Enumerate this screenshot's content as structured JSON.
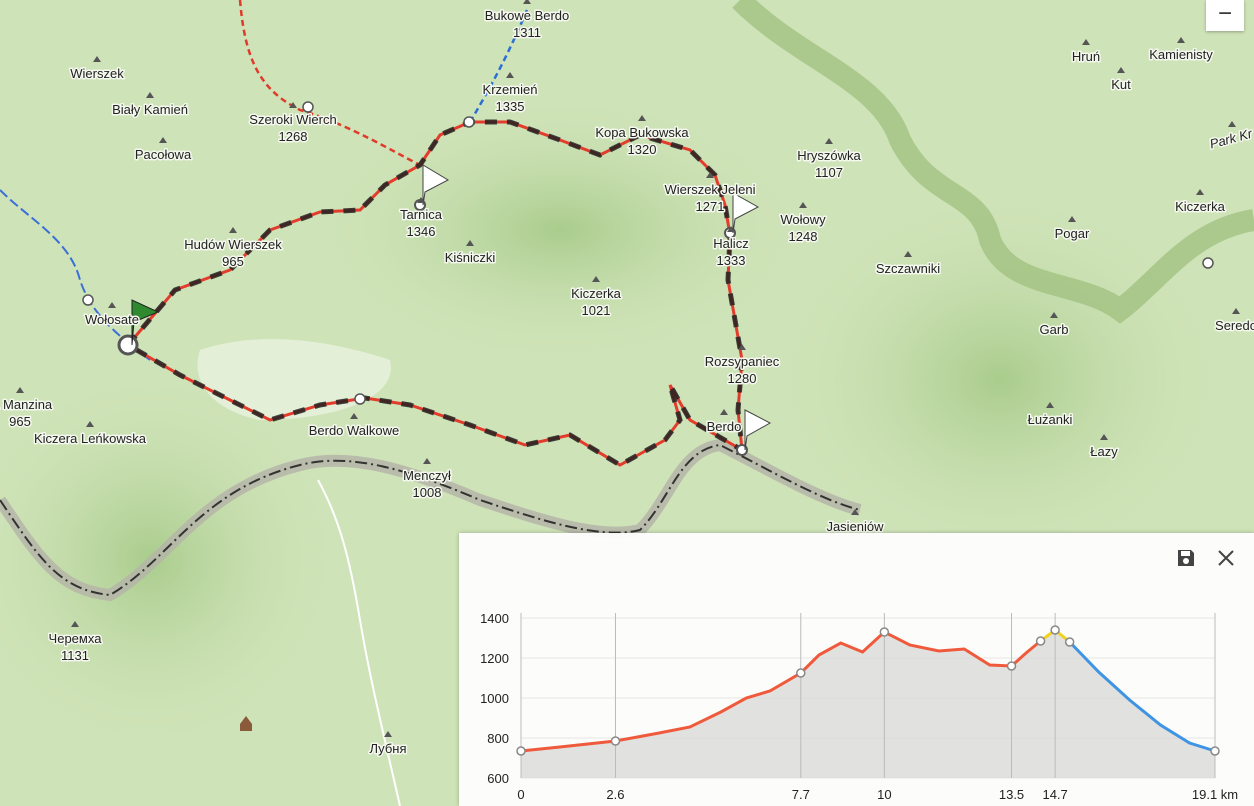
{
  "places": [
    {
      "name": "Bukowe Berdo",
      "elevation": "1311"
    },
    {
      "name": "Krzemień",
      "elevation": "1335"
    },
    {
      "name": "Kopa Bukowska",
      "elevation": "1320"
    },
    {
      "name": "Wierszek"
    },
    {
      "name": "Biały Kamień"
    },
    {
      "name": "Szeroki Wierch",
      "elevation": "1268"
    },
    {
      "name": "Pacołowa"
    },
    {
      "name": "Tarnica",
      "elevation": "1346"
    },
    {
      "name": "Hudów Wierszek",
      "elevation": "965"
    },
    {
      "name": "Kiśniczki"
    },
    {
      "name": "Kiczerka",
      "elevation": "1021"
    },
    {
      "name": "Wołosate"
    },
    {
      "name": "Halicz",
      "elevation": "1333"
    },
    {
      "name": "Wierszek Jeleni",
      "elevation": "1271"
    },
    {
      "name": "Wołowy",
      "elevation": "1248"
    },
    {
      "name": "Hryszówka",
      "elevation": "1107"
    },
    {
      "name": "Szczawniki"
    },
    {
      "name": "Rozsypaniec",
      "elevation": "1280"
    },
    {
      "name": "Berdo"
    },
    {
      "name": "Berdo Walkowe"
    },
    {
      "name": "Menczył",
      "elevation": "1008"
    },
    {
      "name": "ra Manzina",
      "elevation": "965"
    },
    {
      "name": "Kiczera Leńkowska"
    },
    {
      "name": "Jasieniów"
    },
    {
      "name": "Hruń"
    },
    {
      "name": "Kamienisty"
    },
    {
      "name": "Kut"
    },
    {
      "name": "Pogar"
    },
    {
      "name": "Kiczerka"
    },
    {
      "name": "Garb"
    },
    {
      "name": "Łużanki"
    },
    {
      "name": "Łazy"
    },
    {
      "name": "Черемха",
      "elevation": "1131"
    },
    {
      "name": "Лубня"
    },
    {
      "name": "Park Kr"
    },
    {
      "name": "Seredo"
    }
  ],
  "chart_data": {
    "type": "line",
    "x": [
      0,
      1.07,
      2.6,
      3.8,
      4.65,
      5.5,
      6.2,
      6.85,
      7.7,
      8.2,
      8.8,
      9.4,
      10,
      10.7,
      11.5,
      12.2,
      12.9,
      13.5,
      13.9,
      14.3,
      14.7,
      15.1,
      15.9,
      16.75,
      17.6,
      18.4,
      19.1
    ],
    "series": [
      {
        "color": "#f05a3c",
        "values": [
          735,
          755,
          785,
          825,
          855,
          930,
          1000,
          1035,
          1125,
          1215,
          1275,
          1230,
          1330,
          1265,
          1235,
          1245,
          1165,
          1160,
          1225,
          1285,
          null,
          null,
          null,
          null,
          null,
          null,
          null
        ]
      },
      {
        "color": "#f2d31b",
        "values": [
          null,
          null,
          null,
          null,
          null,
          null,
          null,
          null,
          null,
          null,
          null,
          null,
          null,
          null,
          null,
          null,
          null,
          null,
          null,
          1285,
          1340,
          1280,
          null,
          null,
          null,
          null,
          null
        ]
      },
      {
        "color": "#3f94e4",
        "values": [
          null,
          null,
          null,
          null,
          null,
          null,
          null,
          null,
          null,
          null,
          null,
          null,
          null,
          null,
          null,
          null,
          null,
          null,
          null,
          null,
          null,
          1280,
          1130,
          990,
          865,
          775,
          735
        ]
      }
    ],
    "xlim": [
      0,
      19.1
    ],
    "ylim": [
      600,
      1400
    ],
    "xticks": [
      0,
      2.6,
      7.7,
      10,
      13.5,
      14.7,
      {
        "value": 19.1,
        "label": "19.1 km"
      }
    ],
    "yticks": [
      600,
      800,
      1000,
      1200,
      1400
    ]
  }
}
